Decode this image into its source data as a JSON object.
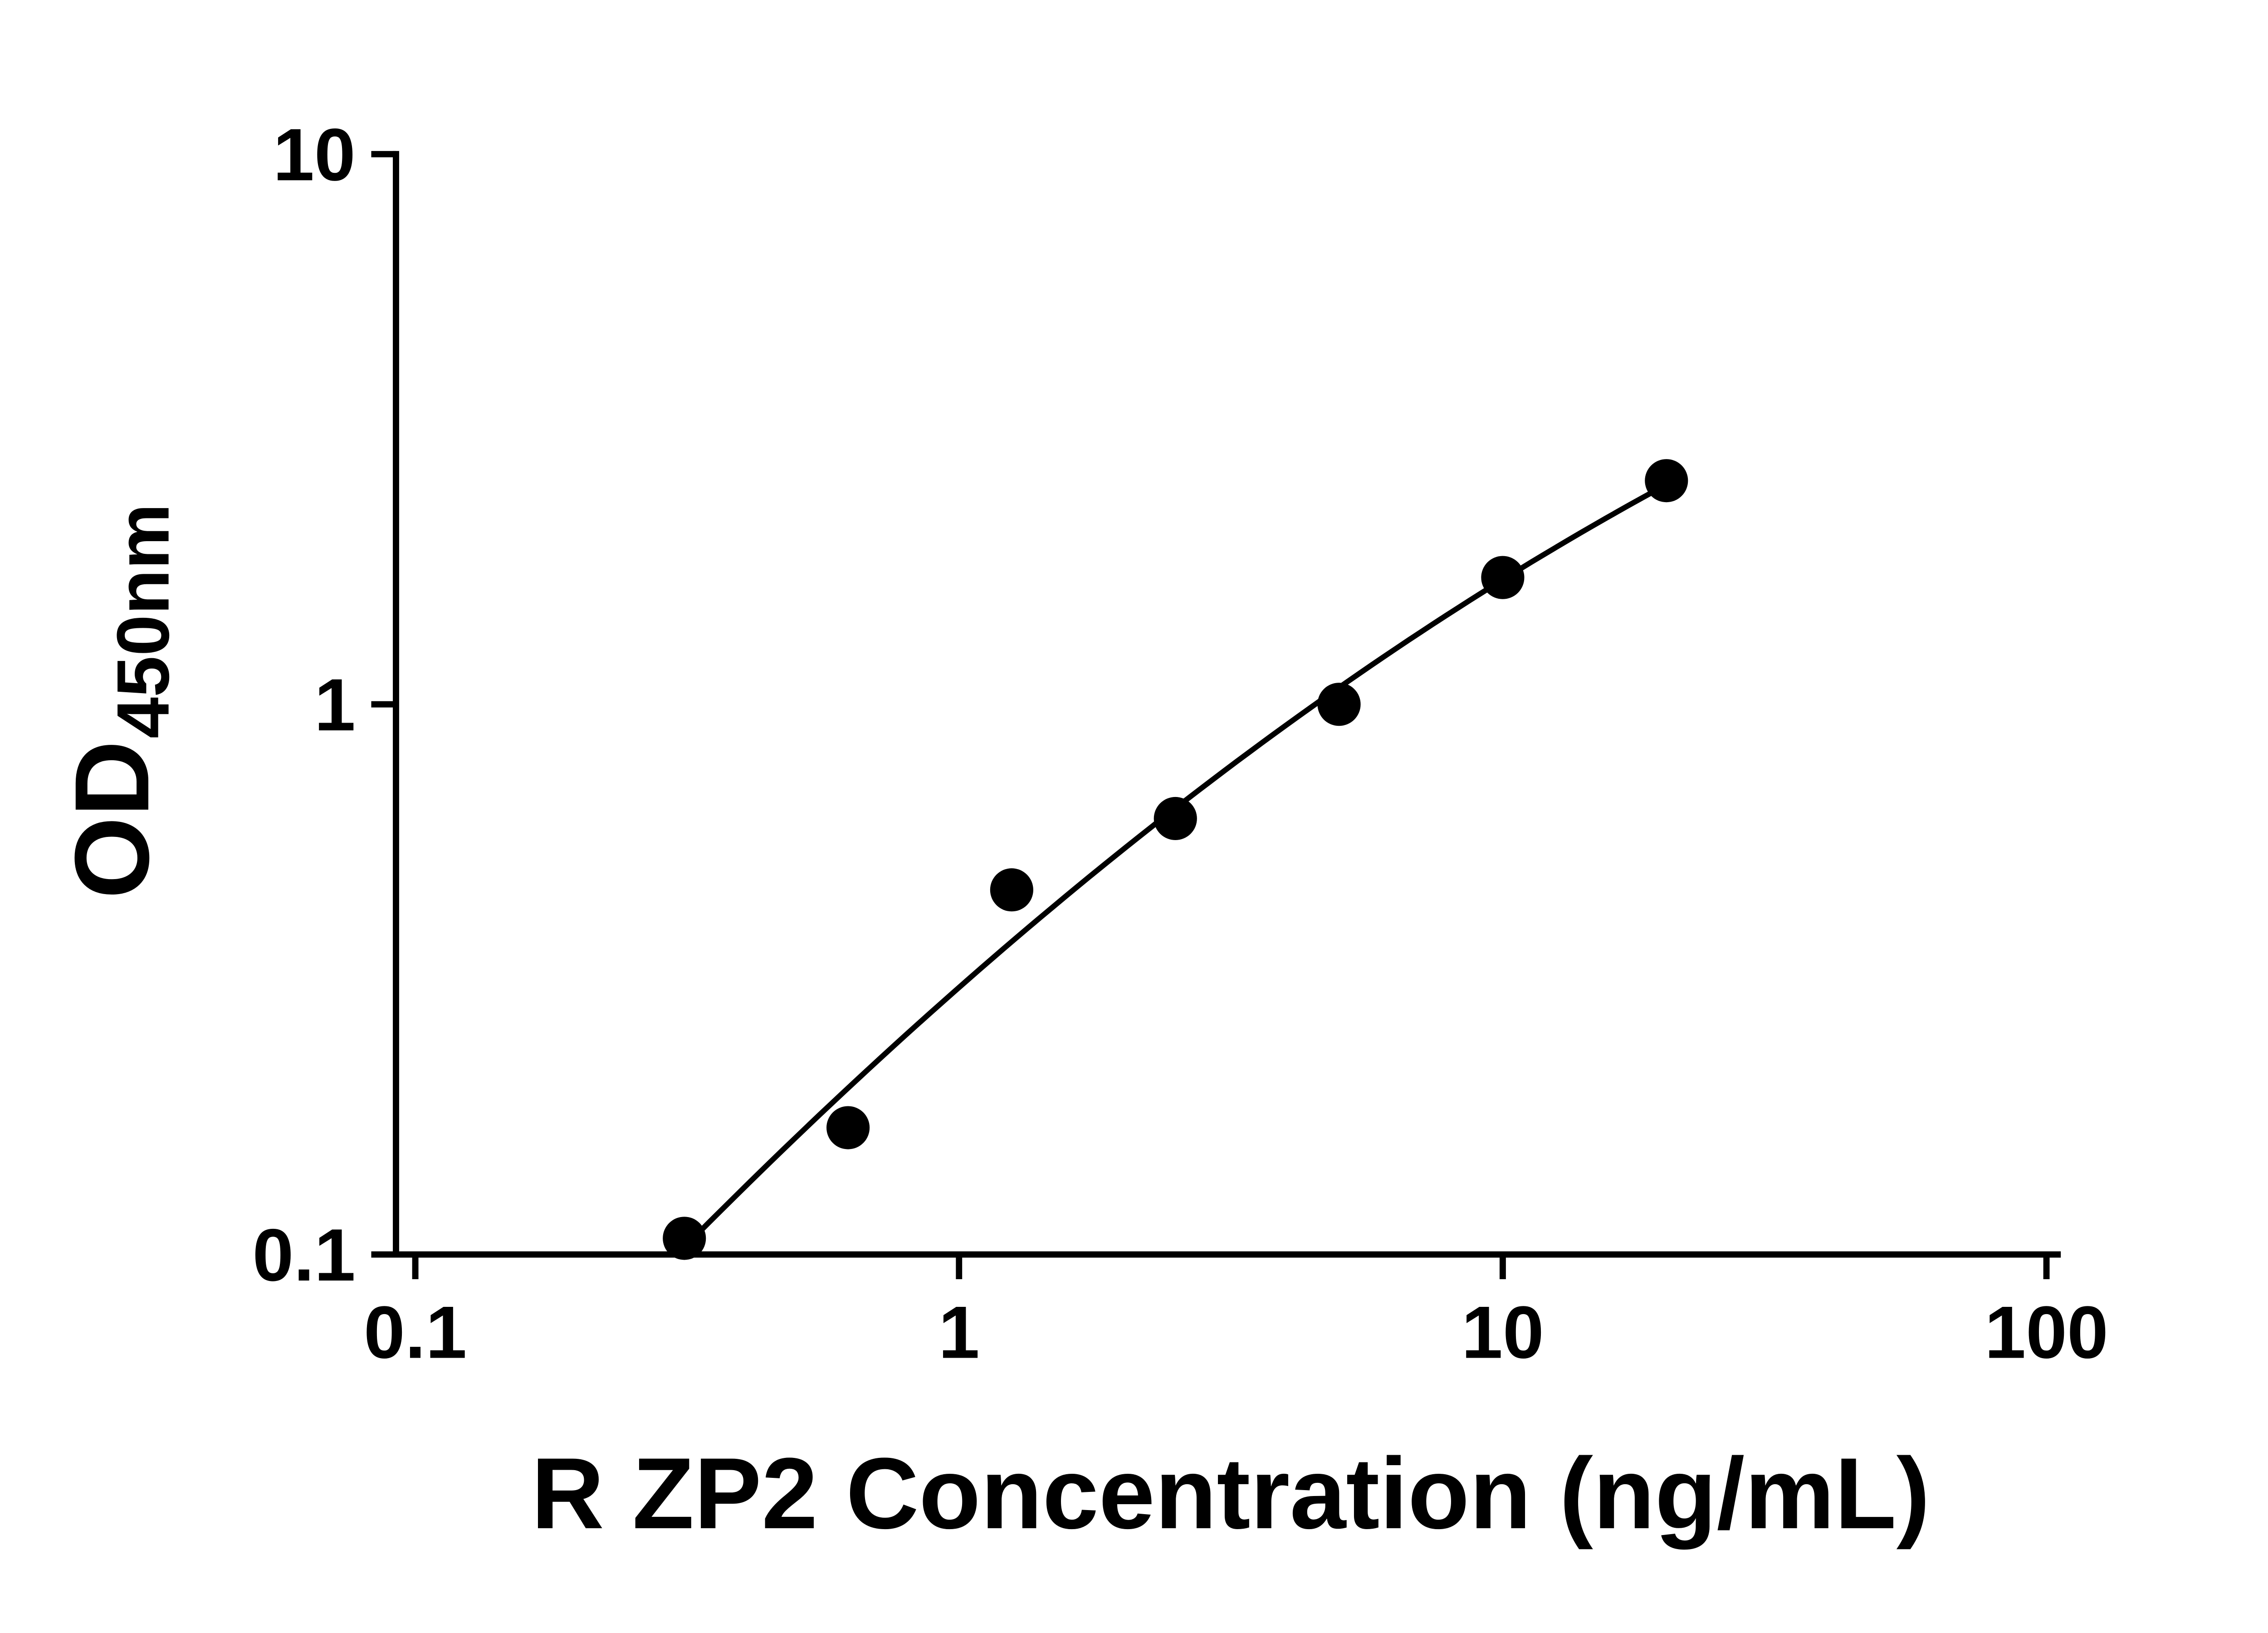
{
  "chart_data": {
    "type": "scatter",
    "title": "",
    "xlabel": "R ZP2 Concentration (ng/mL)",
    "ylabel_main": "OD",
    "ylabel_sub": "450nm",
    "x_scale": "log",
    "y_scale": "log",
    "xlim": [
      0.1,
      100
    ],
    "ylim": [
      0.1,
      10
    ],
    "x_ticks": [
      0.1,
      1,
      10,
      100
    ],
    "x_tick_labels": [
      "0.1",
      "1",
      "10",
      "100"
    ],
    "y_ticks": [
      0.1,
      1,
      10
    ],
    "y_tick_labels": [
      "0.1",
      "1",
      "10"
    ],
    "grid": false,
    "legend": "none",
    "marker_color": "#000000",
    "line_color": "#000000",
    "fit": "smooth curve through standards (log-log quadratic)",
    "series": [
      {
        "x": [
          0.3125,
          0.625,
          1.25,
          2.5,
          5,
          10,
          20
        ],
        "y": [
          0.107,
          0.17,
          0.46,
          0.62,
          1.0,
          1.7,
          2.55
        ]
      }
    ]
  }
}
